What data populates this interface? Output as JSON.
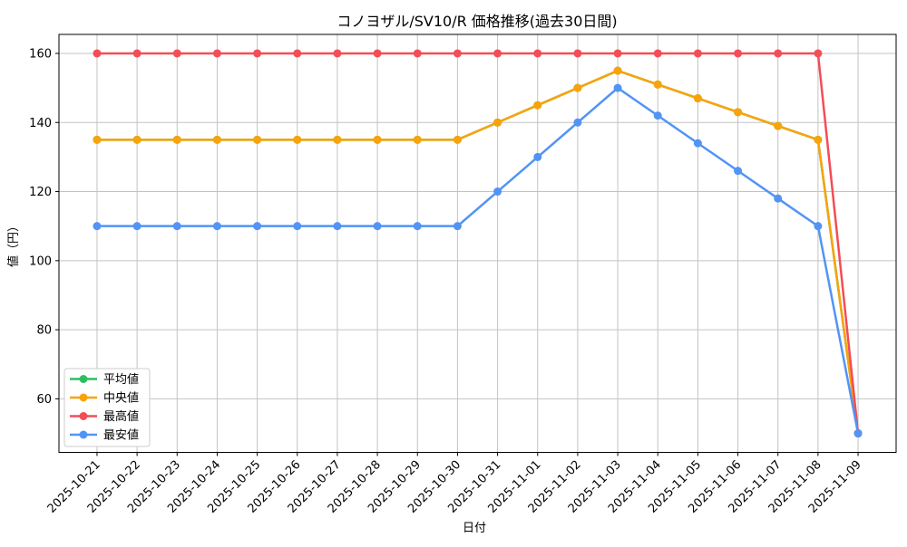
{
  "chart_data": {
    "type": "line",
    "title": "コノヨザル/SV10/R 価格推移(過去30日間)",
    "xlabel": "日付",
    "ylabel": "値（円）",
    "categories": [
      "2025-10-21",
      "2025-10-22",
      "2025-10-23",
      "2025-10-24",
      "2025-10-25",
      "2025-10-26",
      "2025-10-27",
      "2025-10-28",
      "2025-10-29",
      "2025-10-30",
      "2025-10-31",
      "2025-11-01",
      "2025-11-02",
      "2025-11-03",
      "2025-11-04",
      "2025-11-05",
      "2025-11-06",
      "2025-11-07",
      "2025-11-08",
      "2025-11-09"
    ],
    "series": [
      {
        "id": "average",
        "name": "平均値",
        "color": "#2dbe60",
        "values": [
          135,
          135,
          135,
          135,
          135,
          135,
          135,
          135,
          135,
          135,
          140,
          145,
          150,
          155,
          151,
          147,
          143,
          139,
          135,
          50
        ]
      },
      {
        "id": "median",
        "name": "中央値",
        "color": "#f9a30a",
        "values": [
          135,
          135,
          135,
          135,
          135,
          135,
          135,
          135,
          135,
          135,
          140,
          145,
          150,
          155,
          151,
          147,
          143,
          139,
          135,
          50
        ]
      },
      {
        "id": "max",
        "name": "最高値",
        "color": "#f44d56",
        "values": [
          160,
          160,
          160,
          160,
          160,
          160,
          160,
          160,
          160,
          160,
          160,
          160,
          160,
          160,
          160,
          160,
          160,
          160,
          160,
          50
        ]
      },
      {
        "id": "min",
        "name": "最安値",
        "color": "#5294f5",
        "values": [
          110,
          110,
          110,
          110,
          110,
          110,
          110,
          110,
          110,
          110,
          120,
          130,
          140,
          150,
          142,
          134,
          126,
          118,
          110,
          50
        ]
      }
    ],
    "yticks": [
      60,
      80,
      100,
      120,
      140,
      160
    ],
    "ylim": [
      44.5,
      165.5
    ],
    "grid": true,
    "grid_color": "#c3c3c3",
    "axis_color": "#000000",
    "background": "#ffffff",
    "legend_position": "lower left"
  }
}
